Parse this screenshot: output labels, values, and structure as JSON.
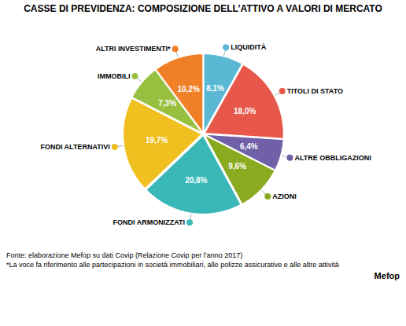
{
  "chart_data": {
    "type": "pie",
    "title": "CASSE DI PREVIDENZA: COMPOSIZIONE DELL’ATTIVO A VALORI DI MERCATO",
    "categories": [
      "LIQUIDITÀ",
      "TITOLI DI STATO",
      "ALTRE OBBLIGAZIONI",
      "AZIONI",
      "FONDI ARMONIZZATI",
      "FONDI ALTERNATIVI",
      "IMMOBILI",
      "ALTRI INVESTIMENTI*"
    ],
    "values": [
      8.1,
      18.0,
      6.4,
      9.6,
      20.8,
      19.7,
      7.3,
      10.2
    ],
    "value_labels": [
      "8,1%",
      "18,0%",
      "6,4%",
      "9,6%",
      "20,8%",
      "19,7%",
      "7,3%",
      "10,2%"
    ],
    "colors": [
      "#5bb8d4",
      "#e8584a",
      "#7060a8",
      "#8aaa20",
      "#3ab8b8",
      "#f0c020",
      "#98c040",
      "#f08028"
    ],
    "data_labels": true,
    "annotations": [
      "Fonte: elaborazione Mefop su dati Covip (Relazione Covip per l’anno 2017)",
      "*La voce fa riferimento alle partecipazioni in società immobiliari, alle polizze assicurative e alle altre attività",
      "Mefop"
    ]
  }
}
